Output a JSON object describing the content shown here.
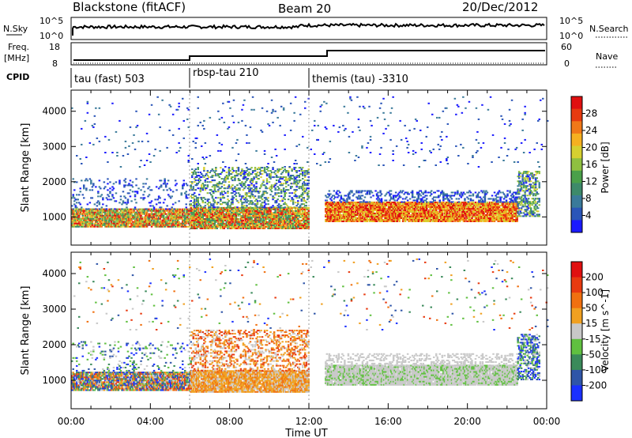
{
  "header": {
    "station": "Blackstone (fitACF)",
    "beam": "Beam 20",
    "date": "20/Dec/2012"
  },
  "strip_labels": {
    "nsky": "N.Sky",
    "nsky_ticks": [
      "10^5",
      "10^0"
    ],
    "freq_line1": "Freq.",
    "freq_line2": "[MHz]",
    "freq_ticks": [
      "18",
      "8"
    ],
    "cpid": "CPID",
    "nsearch": "N.Search",
    "nsearch_ticks": [
      "10^5",
      "10^0"
    ],
    "nave": "Nave",
    "nave_ticks": [
      "60",
      "0"
    ]
  },
  "cpid_segments": [
    {
      "label": "tau (fast) 503",
      "start_hour": 0
    },
    {
      "label": "rbsp-tau 210",
      "start_hour": 6
    },
    {
      "label": "themis (tau) -3310",
      "start_hour": 12
    }
  ],
  "chart_data": [
    {
      "type": "heatmap",
      "name": "power-panel",
      "ylabel": "Slant Range [km]",
      "ylim": [
        200,
        4600
      ],
      "yticks": [
        1000,
        2000,
        3000,
        4000
      ],
      "x_ticks_hours": [
        0,
        4,
        8,
        12,
        16,
        20,
        24
      ],
      "colorbar": {
        "label": "Power [dB]",
        "range": [
          0,
          32
        ],
        "tick_labels": [
          "28",
          "24",
          "20",
          "16",
          "12",
          "8",
          "4"
        ],
        "colors": [
          "#1a1aff",
          "#2a55b8",
          "#3a7a9a",
          "#3d8a6a",
          "#4aa04a",
          "#8fc040",
          "#d6d030",
          "#f6b020",
          "#f07818",
          "#e63a10",
          "#e01010"
        ]
      }
    },
    {
      "type": "heatmap",
      "name": "velocity-panel",
      "ylabel": "Slant Range [km]",
      "ylim": [
        200,
        4600
      ],
      "yticks": [
        1000,
        2000,
        3000,
        4000
      ],
      "x_ticks_hours": [
        0,
        4,
        8,
        12,
        16,
        20,
        24
      ],
      "colorbar": {
        "label": "Velocity [m s^-1]",
        "tick_labels": [
          "200",
          "100",
          "50",
          "15",
          "-15",
          "-50",
          "-100",
          "-200"
        ],
        "colors": [
          "#1a30ff",
          "#2f55a8",
          "#3a8a5a",
          "#60c040",
          "#c8c8c8",
          "#f0a020",
          "#f07010",
          "#e83a10",
          "#e01010"
        ]
      }
    }
  ],
  "x_axis": {
    "tick_labels": [
      "00:00",
      "04:00",
      "08:00",
      "12:00",
      "16:00",
      "20:00",
      "00:00"
    ],
    "label": "Time UT"
  }
}
